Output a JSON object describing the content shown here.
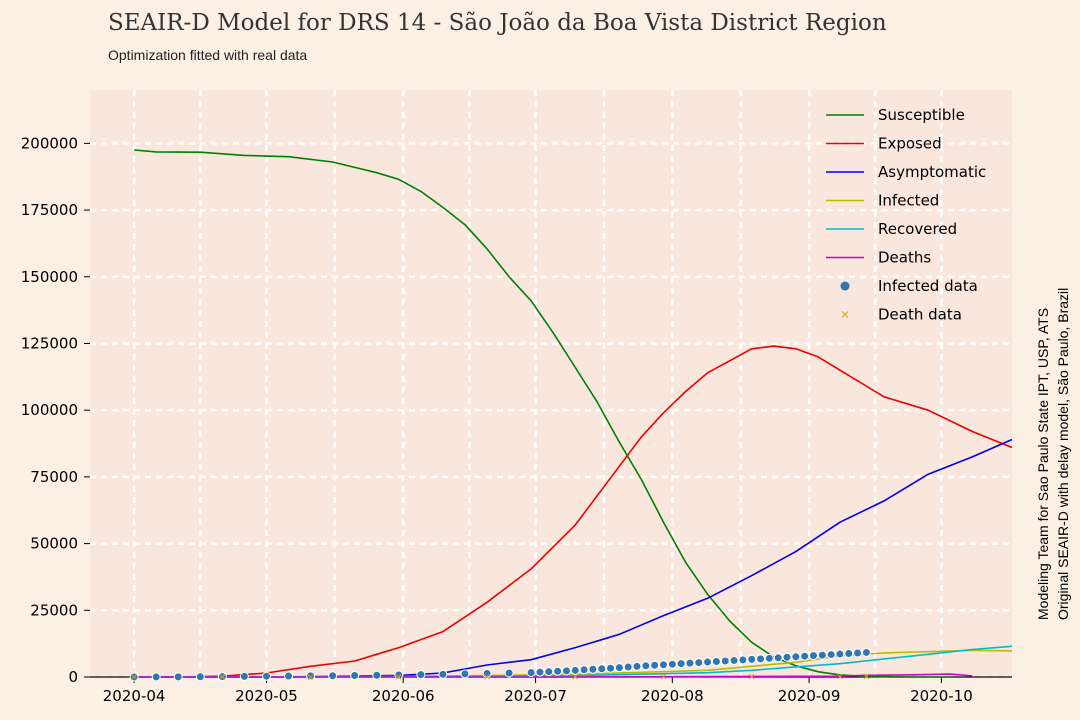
{
  "chart_data": {
    "type": "line",
    "title": "SEAIR-D Model for DRS 14 - São João da Boa Vista District Region",
    "subtitle": "Optimization fitted with real data",
    "side_note": [
      "Modeling Team for Sao Paulo State IPT, USP, ATS",
      "Original SEAIR-D with delay model, São Paulo, Brazil"
    ],
    "x_ticks": [
      "2020-04",
      "2020-05",
      "2020-06",
      "2020-07",
      "2020-08",
      "2020-09",
      "2020-10"
    ],
    "x_tick_days": [
      0,
      30,
      61,
      91,
      122,
      153,
      183
    ],
    "x_range_days": [
      -10,
      199
    ],
    "y_ticks": [
      "0",
      "25000",
      "50000",
      "75000",
      "100000",
      "125000",
      "150000",
      "175000",
      "200000"
    ],
    "ylim": [
      0,
      220000
    ],
    "grid": true,
    "legend_position": "top-right",
    "colors": {
      "background": "#fcefe4",
      "plot_area": "#f9e6dc",
      "grid": "#ffffff"
    },
    "series": [
      {
        "name": "Susceptible",
        "color": "#008000",
        "kind": "line",
        "x": [
          0,
          5,
          15,
          25,
          35,
          45,
          50,
          55,
          60,
          65,
          70,
          75,
          80,
          85,
          90,
          95,
          100,
          105,
          110,
          115,
          120,
          125,
          130,
          135,
          140,
          145,
          150,
          155,
          160,
          165,
          170,
          175,
          180,
          185
        ],
        "y": [
          197500,
          196800,
          196700,
          195500,
          195000,
          193000,
          191000,
          189000,
          186500,
          182000,
          176000,
          169500,
          160500,
          150000,
          141000,
          129000,
          116000,
          103000,
          88000,
          74000,
          58000,
          43000,
          31000,
          21000,
          13000,
          7500,
          4200,
          2000,
          800,
          300,
          100,
          0,
          0,
          0
        ]
      },
      {
        "name": "Exposed",
        "color": "#ee0000",
        "kind": "line",
        "x": [
          0,
          10,
          20,
          30,
          40,
          50,
          55,
          60,
          70,
          80,
          90,
          100,
          110,
          115,
          120,
          125,
          130,
          140,
          145,
          150,
          155,
          160,
          165,
          170,
          180,
          190,
          199
        ],
        "y": [
          0,
          0,
          300,
          1500,
          4000,
          6000,
          8500,
          11000,
          17000,
          28000,
          40500,
          57000,
          79000,
          90000,
          99000,
          107000,
          114000,
          123000,
          124000,
          123000,
          120000,
          115000,
          110000,
          105000,
          100000,
          92000,
          86000
        ]
      },
      {
        "name": "Asymptomatic",
        "color": "#0000ee",
        "kind": "line",
        "x": [
          0,
          20,
          40,
          60,
          70,
          80,
          90,
          100,
          110,
          120,
          130,
          140,
          150,
          160,
          170,
          180,
          190,
          199
        ],
        "y": [
          0,
          0,
          100,
          600,
          1500,
          4500,
          6500,
          11000,
          16000,
          23000,
          29500,
          38000,
          47000,
          58000,
          66000,
          76000,
          82500,
          89000
        ]
      },
      {
        "name": "Infected",
        "color": "#bbbb00",
        "kind": "line",
        "x": [
          0,
          60,
          100,
          130,
          150,
          160,
          170,
          180,
          190,
          199
        ],
        "y": [
          0,
          200,
          1000,
          2500,
          5500,
          8000,
          9000,
          9500,
          10000,
          9800
        ]
      },
      {
        "name": "Recovered",
        "color": "#00bbcc",
        "kind": "line",
        "x": [
          0,
          60,
          100,
          130,
          140,
          150,
          160,
          170,
          180,
          190,
          199
        ],
        "y": [
          0,
          100,
          500,
          1600,
          2500,
          3800,
          5000,
          6800,
          8500,
          10300,
          11500
        ]
      },
      {
        "name": "Deaths",
        "color": "#cc00cc",
        "kind": "line",
        "x": [
          0,
          100,
          160,
          165,
          175,
          180,
          185,
          190
        ],
        "y": [
          0,
          0,
          300,
          600,
          800,
          900,
          1100,
          400
        ]
      },
      {
        "name": "Infected data",
        "color": "#2f77b4",
        "kind": "scatter",
        "x": [
          0,
          5,
          10,
          15,
          20,
          25,
          30,
          35,
          40,
          45,
          50,
          55,
          60,
          65,
          70,
          75,
          80,
          85,
          90,
          92,
          94,
          96,
          98,
          100,
          102,
          104,
          106,
          108,
          110,
          112,
          114,
          116,
          118,
          120,
          122,
          124,
          126,
          128,
          130,
          132,
          134,
          136,
          138,
          140,
          142,
          144,
          146,
          148,
          150,
          152,
          154,
          156,
          158,
          160,
          162,
          164,
          166
        ],
        "y": [
          10,
          30,
          60,
          100,
          160,
          230,
          300,
          360,
          420,
          480,
          560,
          650,
          760,
          880,
          1000,
          1150,
          1300,
          1500,
          1700,
          1850,
          2000,
          2150,
          2300,
          2500,
          2700,
          2900,
          3100,
          3300,
          3500,
          3750,
          4000,
          4200,
          4400,
          4600,
          4800,
          5000,
          5200,
          5400,
          5600,
          5800,
          6000,
          6200,
          6400,
          6600,
          6800,
          7000,
          7200,
          7400,
          7600,
          7800,
          8000,
          8200,
          8400,
          8600,
          8800,
          9000,
          9200
        ]
      },
      {
        "name": "Death data",
        "color": "#d4a017",
        "kind": "marker-x",
        "x": [
          0,
          20,
          40,
          60,
          80,
          100,
          120,
          140,
          160,
          166
        ],
        "y": [
          0,
          10,
          20,
          40,
          70,
          100,
          140,
          180,
          230,
          260
        ]
      }
    ]
  }
}
